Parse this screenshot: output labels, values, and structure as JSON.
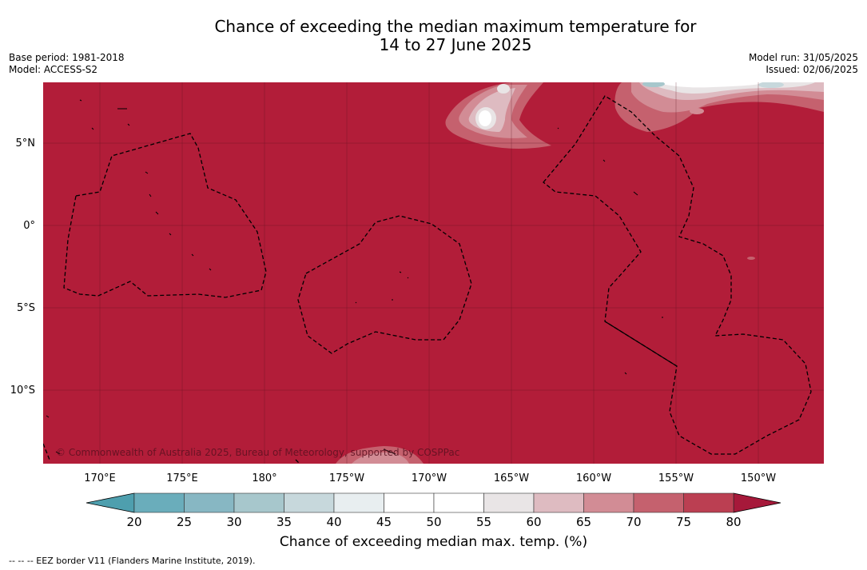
{
  "header": {
    "title_line1": "Chance of exceeding the median maximum temperature for",
    "title_line2": "14 to 27 June 2025",
    "base_period": "Base period: 1981-2018",
    "model": "Model: ACCESS-S2",
    "model_run": "Model run: 31/05/2025",
    "issued": "Issued: 02/06/2025"
  },
  "map": {
    "lat_labels": [
      "5°N",
      "0°",
      "5°S",
      "10°S"
    ],
    "lon_labels": [
      "170°E",
      "175°E",
      "180°",
      "175°W",
      "170°W",
      "165°W",
      "160°W",
      "155°W",
      "150°W"
    ],
    "copyright": "© Commonwealth of Australia 2025, Bureau of Meteorology, supported by COSPPac",
    "dominant_color": "#b21d39"
  },
  "colorbar": {
    "ticks": [
      "20",
      "25",
      "30",
      "35",
      "40",
      "45",
      "50",
      "55",
      "60",
      "65",
      "70",
      "75",
      "80"
    ],
    "colors": [
      "#6aadbb",
      "#87b7c3",
      "#a7c7cc",
      "#c7d8dc",
      "#e8eef0",
      "#ffffff",
      "#ffffff",
      "#e9e5e6",
      "#debbc1",
      "#d28c95",
      "#c5616e",
      "#bb3f52"
    ],
    "under_color": "#4e9fae",
    "over_color": "#a6193a",
    "label": "Chance of exceeding median max. temp. (%)"
  },
  "footnote": "--  --  -- EEZ border V11 (Flanders Marine Institute, 2019)."
}
